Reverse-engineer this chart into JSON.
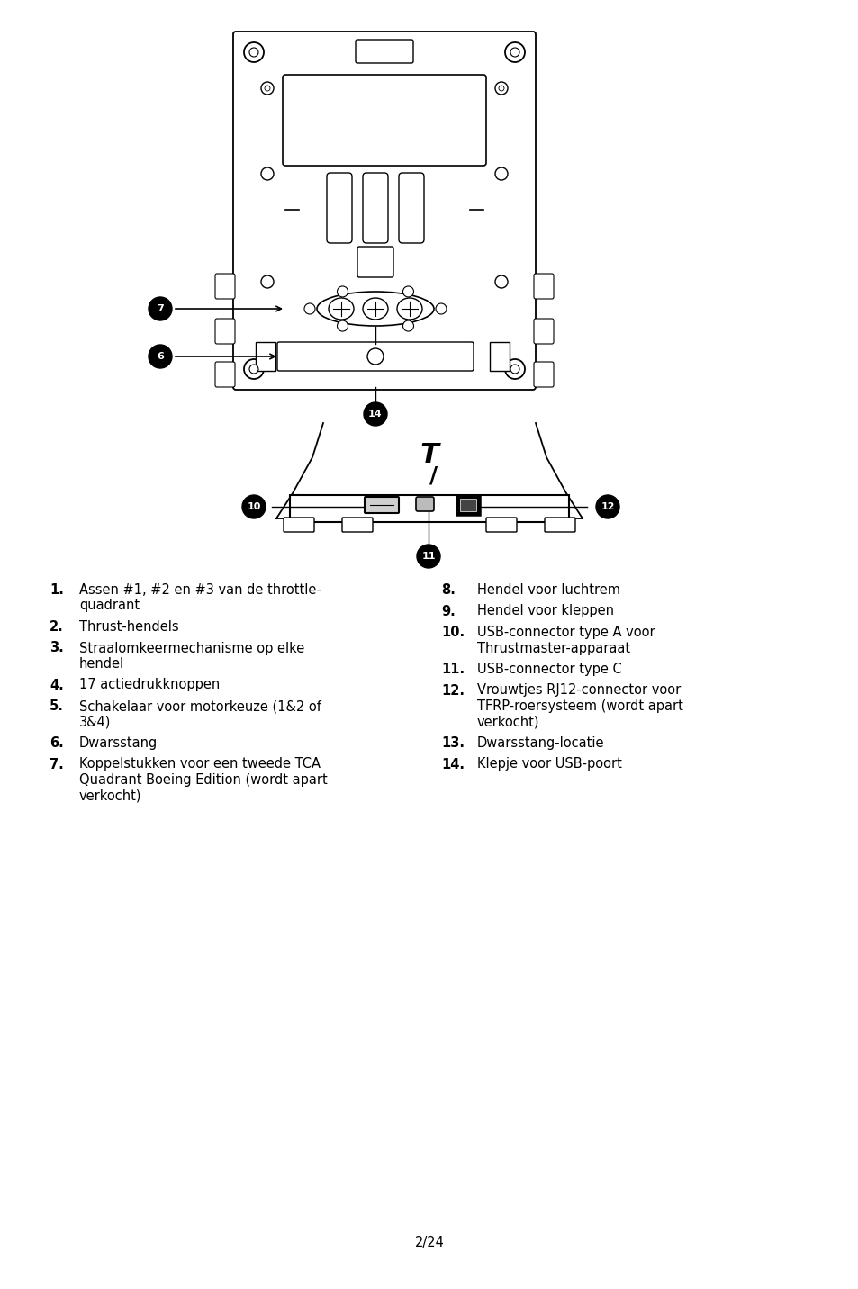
{
  "background_color": "#ffffff",
  "page_number": "2/24",
  "left_items": [
    {
      "num": "1.",
      "text": "Assen #1, #2 en #3 van de throttle-\nquadrant"
    },
    {
      "num": "2.",
      "text": "Thrust-hendels"
    },
    {
      "num": "3.",
      "text": "Straalomkeermechanisme op elke\nhendel"
    },
    {
      "num": "4.",
      "text": "17 actiedrukknoppen"
    },
    {
      "num": "5.",
      "text": "Schakelaar voor motorkeuze (1&2 of\n3&4)"
    },
    {
      "num": "6.",
      "text": "Dwarsstang"
    },
    {
      "num": "7.",
      "text": "Koppelstukken voor een tweede TCA\nQuadrant Boeing Edition (wordt apart\nverkocht)"
    }
  ],
  "right_items": [
    {
      "num": "8.",
      "text": "Hendel voor luchtrem"
    },
    {
      "num": "9.",
      "text": "Hendel voor kleppen"
    },
    {
      "num": "10.",
      "text": "USB-connector type A voor\nThrustmaster-apparaat"
    },
    {
      "num": "11.",
      "text": "USB-connector type C"
    },
    {
      "num": "12.",
      "text": "Vrouwtjes RJ12-connector voor\nTFRP-roersysteem (wordt apart\nverkocht)"
    },
    {
      "num": "13.",
      "text": "Dwarsstang-locatie"
    },
    {
      "num": "14.",
      "text": "Klepje voor USB-poort"
    }
  ],
  "fig_width": 9.54,
  "fig_height": 14.32,
  "dpi": 100
}
